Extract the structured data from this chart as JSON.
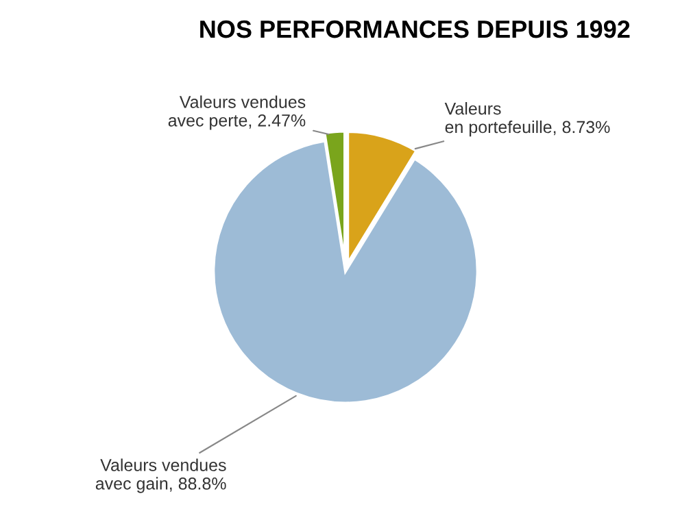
{
  "chart_data": {
    "type": "pie",
    "title": "NOS PERFORMANCES DEPUIS 1992",
    "categories": [
      "Valeurs\nen portefeuille",
      "Valeurs vendues\navec gain",
      "Valeurs vendues\navec perte"
    ],
    "values": [
      8.73,
      88.8,
      2.47
    ],
    "colors": [
      "#d9a31a",
      "#9dbbd6",
      "#7aa51c"
    ],
    "value_labels": [
      ", 8.73%",
      ", 88.8%",
      ", 2.47%"
    ]
  }
}
